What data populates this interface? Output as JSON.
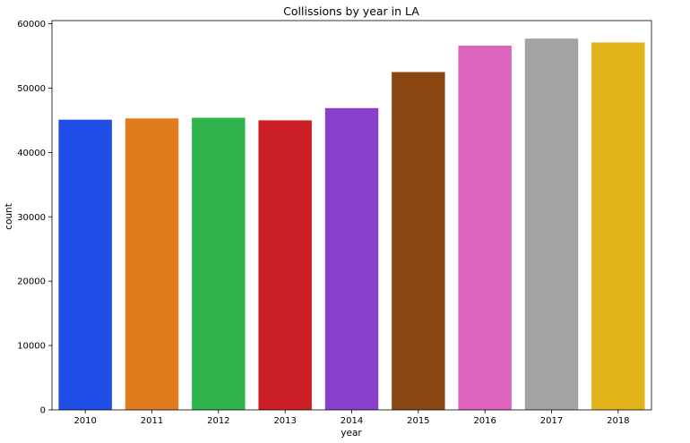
{
  "chart_data": {
    "type": "bar",
    "title": "Collissions by year in LA",
    "xlabel": "year",
    "ylabel": "count",
    "categories": [
      "2010",
      "2011",
      "2012",
      "2013",
      "2014",
      "2015",
      "2016",
      "2017",
      "2018"
    ],
    "values": [
      45100,
      45300,
      45400,
      45000,
      46900,
      52500,
      56600,
      57700,
      57100
    ],
    "colors": [
      "#1f4ee6",
      "#e17c1e",
      "#2fb44b",
      "#cd1f26",
      "#8a3fcc",
      "#8b4712",
      "#dd64bd",
      "#a3a3a3",
      "#e1b21a"
    ],
    "ylim": [
      0,
      60500
    ],
    "yticks": [
      0,
      10000,
      20000,
      30000,
      40000,
      50000,
      60000
    ],
    "ytick_labels": [
      "0",
      "10000",
      "20000",
      "30000",
      "40000",
      "50000",
      "60000"
    ],
    "grid": false,
    "legend": "none"
  }
}
